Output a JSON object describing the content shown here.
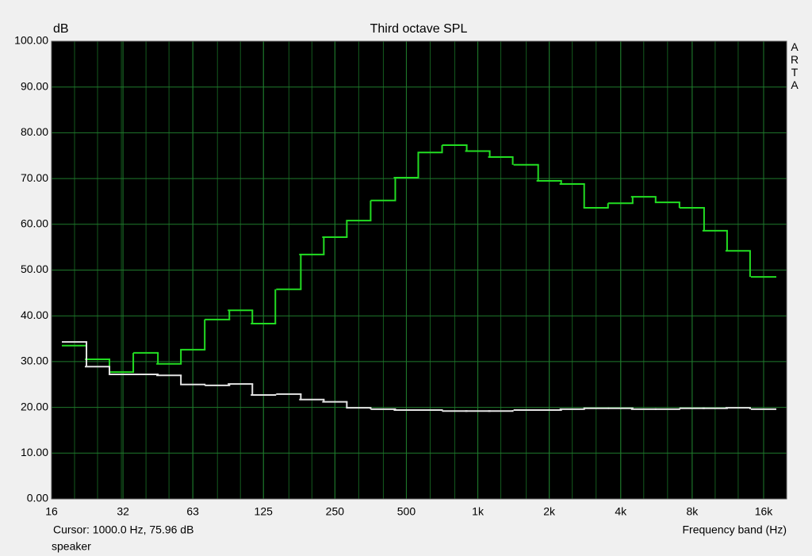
{
  "chart_data": {
    "type": "step",
    "title": "Third octave SPL",
    "ylabel": "dB",
    "xlabel": "Frequency band (Hz)",
    "watermark": "ARTA",
    "cursor": "Cursor:  1000.0 Hz, 75.96 dB",
    "legend": "speaker",
    "x": [
      20,
      25,
      31.5,
      40,
      50,
      63,
      80,
      100,
      125,
      160,
      200,
      250,
      315,
      400,
      500,
      630,
      800,
      1000,
      1250,
      1600,
      2000,
      2500,
      3150,
      4000,
      5000,
      6300,
      8000,
      10000,
      12500,
      16000
    ],
    "series": [
      {
        "color": "#22dd22",
        "values": [
          33.5,
          30.5,
          27.7,
          31.9,
          29.5,
          32.6,
          39.2,
          41.2,
          38.3,
          45.8,
          53.4,
          57.2,
          60.8,
          65.2,
          70.2,
          75.7,
          77.3,
          76.0,
          74.7,
          73.0,
          69.5,
          68.8,
          63.6,
          64.6,
          66.0,
          64.8,
          63.6,
          58.6,
          54.2,
          48.5
        ]
      },
      {
        "color": "#e4e4e4",
        "values": [
          34.3,
          28.9,
          27.2,
          27.2,
          27.0,
          25.0,
          24.8,
          25.1,
          22.7,
          22.9,
          21.7,
          21.2,
          19.9,
          19.6,
          19.4,
          19.4,
          19.2,
          19.2,
          19.2,
          19.4,
          19.4,
          19.6,
          19.8,
          19.8,
          19.6,
          19.6,
          19.8,
          19.8,
          19.9,
          19.6
        ]
      }
    ],
    "xlog": true,
    "xlim": [
      16,
      20000
    ],
    "xticks": [
      16,
      32,
      63,
      125,
      250,
      500,
      {
        "value": 1000,
        "label": "1k"
      },
      {
        "value": 2000,
        "label": "2k"
      },
      {
        "value": 4000,
        "label": "4k"
      },
      {
        "value": 8000,
        "label": "8k"
      },
      {
        "value": 16000,
        "label": "16k"
      }
    ],
    "ylim": [
      0,
      100
    ],
    "yticks": [
      {
        "value": 0,
        "label": "0.00"
      },
      {
        "value": 10,
        "label": "10.00"
      },
      {
        "value": 20,
        "label": "20.00"
      },
      {
        "value": 30,
        "label": "30.00"
      },
      {
        "value": 40,
        "label": "40.00"
      },
      {
        "value": 50,
        "label": "50.00"
      },
      {
        "value": 60,
        "label": "60.00"
      },
      {
        "value": 70,
        "label": "70.00"
      },
      {
        "value": 80,
        "label": "80.00"
      },
      {
        "value": 90,
        "label": "90.00"
      },
      {
        "value": 100,
        "label": "100.00"
      }
    ],
    "grid": true
  }
}
